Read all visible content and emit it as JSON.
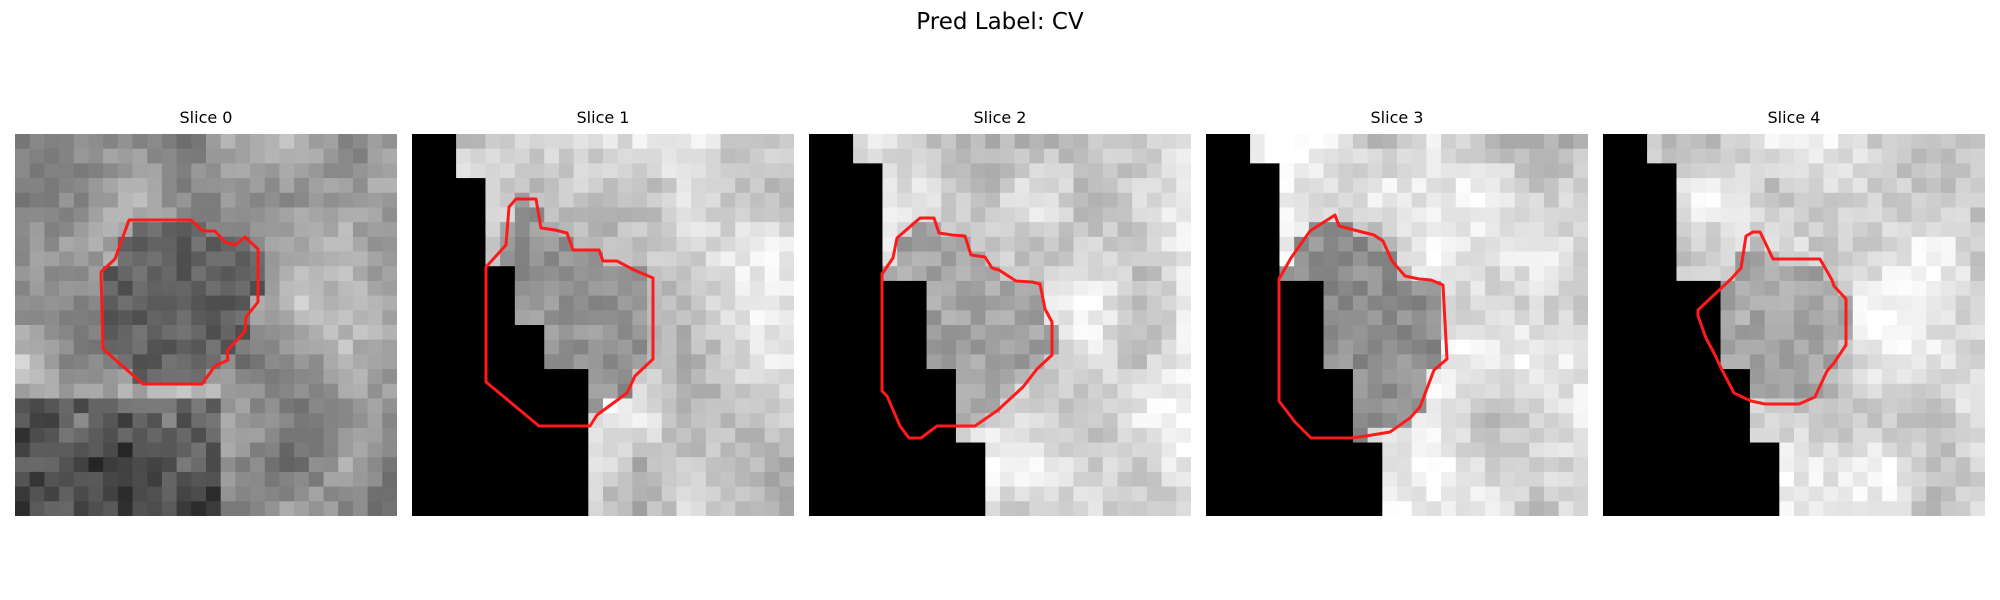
{
  "figure": {
    "suptitle": "Pred Label: CV",
    "contour_color": "#ff1a1a",
    "colormap": "gray",
    "panels": [
      {
        "title": "Slice 0",
        "seed": 11,
        "base": 0.62,
        "dark_region": null,
        "inner": 0.38
      },
      {
        "title": "Slice 1",
        "seed": 23,
        "base": 0.82,
        "dark_region": "left",
        "inner": 0.58
      },
      {
        "title": "Slice 2",
        "seed": 37,
        "base": 0.86,
        "dark_region": "left",
        "inner": 0.64
      },
      {
        "title": "Slice 3",
        "seed": 41,
        "base": 0.84,
        "dark_region": "left",
        "inner": 0.56
      },
      {
        "title": "Slice 4",
        "seed": 53,
        "base": 0.88,
        "dark_region": "left",
        "inner": 0.66
      }
    ]
  }
}
